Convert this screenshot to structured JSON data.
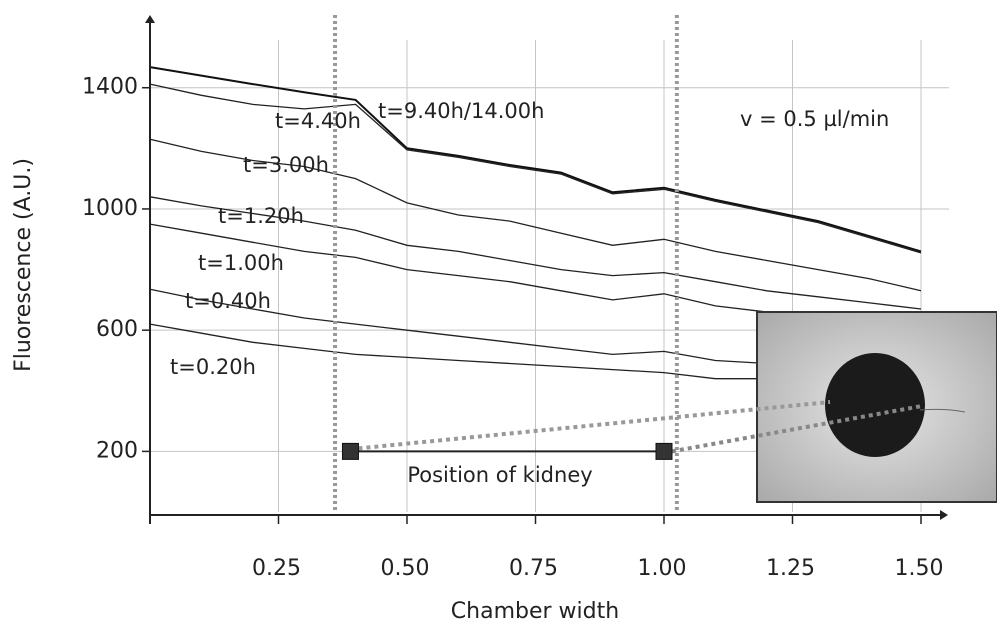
{
  "chart_data": {
    "type": "line",
    "xlabel": "Chamber width",
    "ylabel": "Fluorescence (A.U.)",
    "x": [
      0,
      0.1,
      0.2,
      0.3,
      0.4,
      0.5,
      0.6,
      0.7,
      0.8,
      0.9,
      1.0,
      1.1,
      1.2,
      1.3,
      1.4,
      1.5
    ],
    "series": [
      {
        "name": "t=9.40h/14.00h",
        "color": "#111111",
        "values": [
          1468,
          1440,
          1412,
          1385,
          1360,
          1200,
          1175,
          1145,
          1120,
          1055,
          1070,
          1030,
          995,
          960,
          910,
          860
        ]
      },
      {
        "name": "t=4.40h",
        "color": "#222222",
        "values": [
          1412,
          1375,
          1345,
          1330,
          1345,
          1195,
          1170,
          1140,
          1115,
          1050,
          1065,
          1025,
          990,
          955,
          905,
          855
        ]
      },
      {
        "name": "t=3.00h",
        "color": "#222222",
        "values": [
          1230,
          1190,
          1160,
          1140,
          1100,
          1020,
          980,
          960,
          920,
          880,
          900,
          860,
          830,
          800,
          770,
          730
        ]
      },
      {
        "name": "t=1.20h",
        "color": "#222222",
        "values": [
          1040,
          1010,
          985,
          960,
          930,
          880,
          860,
          830,
          800,
          780,
          790,
          760,
          730,
          710,
          690,
          670
        ]
      },
      {
        "name": "t=1.00h",
        "color": "#222222",
        "values": [
          950,
          920,
          890,
          860,
          840,
          800,
          780,
          760,
          730,
          700,
          720,
          680,
          660,
          640,
          620,
          600
        ]
      },
      {
        "name": "t=0.40h",
        "color": "#222222",
        "values": [
          735,
          700,
          670,
          640,
          620,
          600,
          580,
          560,
          540,
          520,
          530,
          500,
          490,
          480,
          470,
          460
        ]
      },
      {
        "name": "t=0.20h",
        "color": "#222222",
        "values": [
          620,
          590,
          560,
          540,
          520,
          510,
          500,
          490,
          480,
          470,
          460,
          440,
          440,
          430,
          425,
          420
        ]
      }
    ],
    "xlim": [
      0,
      1.5
    ],
    "ylim": [
      0,
      1640
    ],
    "xticks": [
      0.25,
      {
        "value": 0.5,
        "label": "0.50"
      },
      0.75,
      {
        "value": 1.0,
        "label": "1.00"
      },
      1.25,
      {
        "value": 1.5,
        "label": "1.50"
      }
    ],
    "yticks": [
      200,
      600,
      1000,
      1400
    ],
    "grid": true,
    "annotation": "v = 0.5 µl/min",
    "kidney": {
      "label": "Position of kidney",
      "x": [
        0.39,
        1.0
      ],
      "y": 200
    },
    "guides": [
      0.36,
      1.025
    ]
  }
}
